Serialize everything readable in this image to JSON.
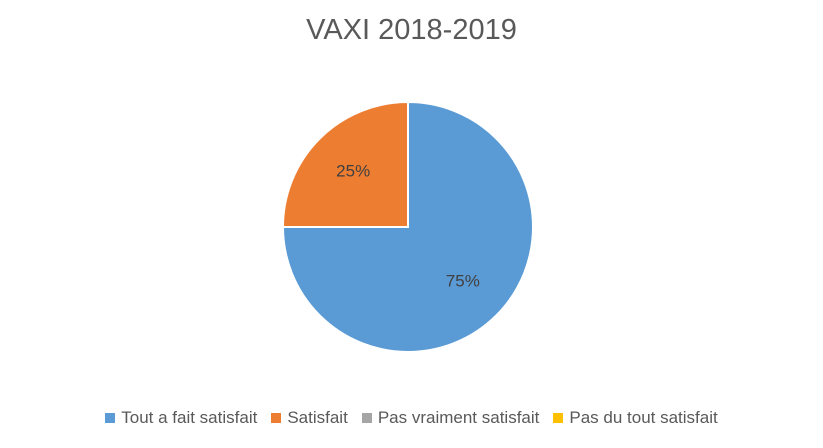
{
  "chart_data": {
    "type": "pie",
    "title": "VAXI 2018-2019",
    "categories": [
      "Tout a fait satisfait",
      "Satisfait",
      "Pas vraiment satisfait",
      "Pas du tout satisfait"
    ],
    "values": [
      75,
      25,
      0,
      0
    ],
    "data_labels": [
      "75%",
      "25%",
      "",
      ""
    ],
    "colors": [
      "#5B9BD5",
      "#ED7D31",
      "#A5A5A5",
      "#FFC000"
    ],
    "legend_position": "bottom",
    "start_angle": "12 o'clock",
    "direction": "clockwise"
  }
}
